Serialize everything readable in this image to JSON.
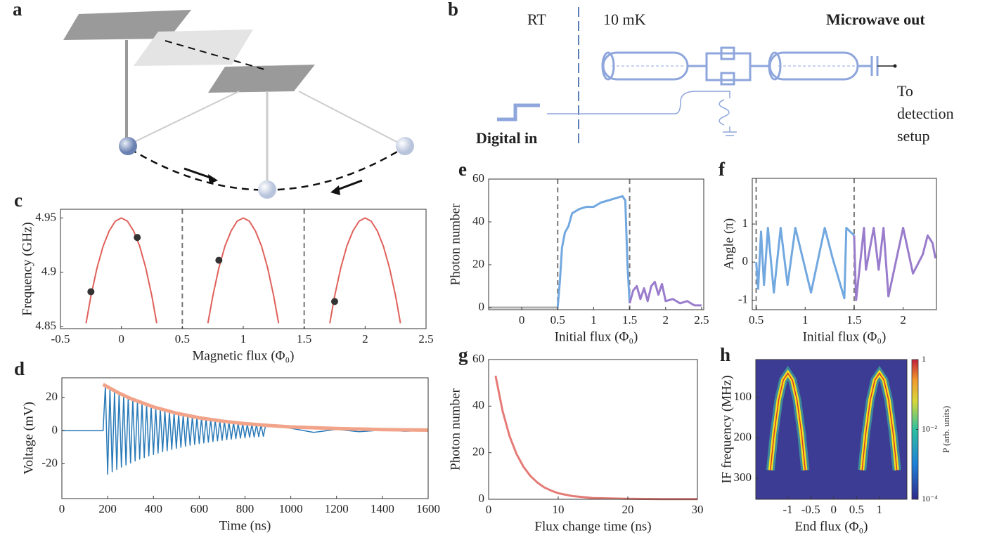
{
  "diagrams": {
    "a": {
      "label": "a"
    },
    "b": {
      "label": "b",
      "rt": "RT",
      "temp": "10 mK",
      "out": "Microwave out",
      "detect": [
        "To",
        "detection",
        "setup"
      ],
      "digital": "Digital in"
    }
  },
  "chart_data": [
    {
      "type": "line",
      "panel_label": "c",
      "xlabel": "Magnetic flux (Φ₀)",
      "ylabel": "Frequency (GHz)",
      "xlim": [
        -0.5,
        2.5
      ],
      "xticks": [
        -0.5,
        0,
        0.5,
        1,
        1.5,
        2,
        2.5
      ],
      "ylim": [
        4.848,
        4.958
      ],
      "yticks": [
        4.85,
        4.9,
        4.95
      ],
      "vlines": [
        0.5,
        1.5
      ],
      "series": [
        {
          "color": "#e0605a",
          "x": [
            -0.29,
            -0.25,
            -0.2,
            -0.15,
            -0.1,
            -0.05,
            0,
            0.05,
            0.1,
            0.15,
            0.2,
            0.25,
            0.29
          ],
          "values": [
            4.853,
            4.878,
            4.904,
            4.924,
            4.938,
            4.947,
            4.95,
            4.947,
            4.938,
            4.924,
            4.904,
            4.878,
            4.853
          ]
        },
        {
          "color": "#e0605a",
          "x": [
            0.71,
            0.75,
            0.8,
            0.85,
            0.9,
            0.95,
            1,
            1.05,
            1.1,
            1.15,
            1.2,
            1.25,
            1.29
          ],
          "values": [
            4.853,
            4.878,
            4.904,
            4.924,
            4.938,
            4.947,
            4.95,
            4.947,
            4.938,
            4.924,
            4.904,
            4.878,
            4.853
          ]
        },
        {
          "color": "#e0605a",
          "x": [
            1.71,
            1.75,
            1.8,
            1.85,
            1.9,
            1.95,
            2,
            2.05,
            2.1,
            2.15,
            2.2,
            2.25,
            2.29
          ],
          "values": [
            4.853,
            4.878,
            4.904,
            4.924,
            4.938,
            4.947,
            4.95,
            4.947,
            4.938,
            4.924,
            4.904,
            4.878,
            4.853
          ]
        }
      ],
      "points": {
        "color": "#333333",
        "x": [
          0.13,
          0.8,
          -0.25,
          1.75
        ],
        "values": [
          4.932,
          4.911,
          4.882,
          4.873
        ]
      }
    },
    {
      "type": "line",
      "panel_label": "d",
      "xlabel": "Time (ns)",
      "ylabel": "Voltage (mV)",
      "xlim": [
        0,
        1600
      ],
      "xticks": [
        0,
        200,
        400,
        600,
        800,
        1000,
        1200,
        1400,
        1600
      ],
      "ylim": [
        -41,
        32
      ],
      "yticks": [
        -20,
        0,
        20
      ],
      "series": [
        {
          "color": "#2a7ab8",
          "width": 1.5,
          "x": [
            0,
            100,
            180,
            190,
            200,
            210,
            220,
            230,
            240,
            250,
            260,
            270,
            280,
            290,
            300,
            310,
            320,
            330,
            340,
            350,
            360,
            370,
            380,
            390,
            400,
            410,
            420,
            430,
            440,
            450,
            460,
            470,
            480,
            490,
            500,
            510,
            520,
            530,
            540,
            550,
            560,
            570,
            580,
            590,
            600,
            610,
            620,
            630,
            640,
            650,
            660,
            670,
            680,
            690,
            700,
            710,
            720,
            730,
            740,
            750,
            760,
            770,
            780,
            790,
            800,
            810,
            820,
            830,
            840,
            850,
            860,
            870,
            880,
            890,
            1000,
            1100,
            1200,
            1300,
            1400,
            1500,
            1600
          ],
          "values": [
            0,
            0,
            0,
            27.2,
            -26.3,
            25.6,
            -24.8,
            24.1,
            -23.4,
            22.7,
            -22,
            21.3,
            -20.7,
            20.1,
            -19.5,
            18.9,
            -18.3,
            17.8,
            -17.2,
            16.7,
            -16.2,
            15.8,
            -15.3,
            14.8,
            -14.4,
            13.9,
            -13.5,
            13.1,
            -12.7,
            12.4,
            -12,
            11.6,
            -11.3,
            10.9,
            -10.6,
            10.3,
            -10,
            9.7,
            -9.4,
            9.1,
            -8.8,
            8.6,
            -8.3,
            8.1,
            -7.8,
            7.6,
            -7.4,
            7.2,
            -6.9,
            6.7,
            -6.5,
            6.3,
            -6.1,
            6,
            -5.8,
            5.6,
            -5.4,
            5.3,
            -5.1,
            5,
            -4.8,
            4.7,
            -4.5,
            4.4,
            -4.3,
            4.1,
            -4,
            3.9,
            -3.8,
            3.7,
            -3.6,
            3.5,
            -3.4,
            3.3,
            1.5,
            -1,
            0.8,
            -0.6,
            0.4,
            -0.3,
            0.2
          ]
        },
        {
          "color": "#f2a48a",
          "width": 5,
          "x": [
            180,
            250,
            300,
            400,
            500,
            600,
            700,
            800,
            900,
            1000,
            1200,
            1400,
            1600
          ],
          "values": [
            28,
            22.7,
            19.5,
            14.4,
            10.6,
            7.8,
            5.8,
            4.3,
            3.2,
            2.3,
            1.3,
            0.7,
            0.4
          ]
        }
      ]
    },
    {
      "type": "line",
      "panel_label": "e",
      "xlabel": "Initial flux (Φ₀)",
      "ylabel": "Photon number",
      "xlim": [
        -0.46,
        2.53
      ],
      "xticks": [
        0,
        0.5,
        1,
        1.5,
        2,
        2.5
      ],
      "ylim": [
        -1,
        60
      ],
      "yticks": [
        0,
        20,
        40,
        60
      ],
      "vlines": [
        0.5,
        1.5
      ],
      "series": [
        {
          "color": "#b0b0b0",
          "width": 3,
          "x": [
            -0.46,
            0,
            0.5
          ],
          "values": [
            0,
            0,
            0
          ]
        },
        {
          "color": "#72a8e0",
          "width": 3,
          "x": [
            0.5,
            0.53,
            0.56,
            0.6,
            0.65,
            0.7,
            0.8,
            0.9,
            1,
            1.1,
            1.2,
            1.3,
            1.4,
            1.44,
            1.47,
            1.5
          ],
          "values": [
            0,
            12,
            28,
            35,
            38,
            44,
            46,
            47,
            47,
            49,
            50,
            51,
            52,
            50,
            20,
            2
          ]
        },
        {
          "color": "#9a7ccc",
          "width": 3,
          "x": [
            1.5,
            1.55,
            1.6,
            1.65,
            1.7,
            1.75,
            1.8,
            1.85,
            1.9,
            1.95,
            2,
            2.1,
            2.2,
            2.3,
            2.4,
            2.5
          ],
          "values": [
            2,
            8,
            10,
            4,
            9,
            3,
            10,
            12,
            6,
            11,
            3,
            4,
            2,
            3,
            1,
            1
          ]
        }
      ]
    },
    {
      "type": "line",
      "panel_label": "f",
      "xlabel": "Initial flux (Φ₀)",
      "ylabel": "Angle (π)",
      "xlim": [
        0.46,
        2.34
      ],
      "xticks": [
        0.5,
        1,
        1.5,
        2
      ],
      "ylim": [
        -1.25,
        2.2
      ],
      "yticks": [
        -1,
        0,
        1
      ],
      "vlines": [
        0.5,
        1.5
      ],
      "series": [
        {
          "color": "#72a8e0",
          "width": 3,
          "x": [
            0.5,
            0.52,
            0.55,
            0.58,
            0.62,
            0.68,
            0.75,
            0.82,
            0.9,
            1.06,
            1.2,
            1.28,
            1.4,
            1.42,
            1.5
          ],
          "values": [
            0,
            -0.7,
            0.8,
            -0.6,
            0.9,
            -0.8,
            0.9,
            -0.6,
            0.9,
            -0.8,
            0.9,
            0.1,
            -0.95,
            0.9,
            0.7
          ]
        },
        {
          "color": "#9a7ccc",
          "width": 3,
          "x": [
            1.5,
            1.52,
            1.6,
            1.62,
            1.7,
            1.75,
            1.8,
            1.85,
            2,
            2.1,
            2.2,
            2.25,
            2.3,
            2.33
          ],
          "values": [
            0.7,
            -1,
            0.9,
            -0.2,
            0.9,
            -0.2,
            0.9,
            -0.9,
            0.9,
            -0.3,
            0.2,
            0.7,
            0.5,
            0.1
          ]
        }
      ]
    },
    {
      "type": "line",
      "panel_label": "g",
      "xlabel": "Flux change time (ns)",
      "ylabel": "Photon number",
      "xlim": [
        0,
        30
      ],
      "xticks": [
        0,
        10,
        20,
        30
      ],
      "ylim": [
        0,
        60
      ],
      "yticks": [
        0,
        20,
        40,
        60
      ],
      "series": [
        {
          "color": "#e57b76",
          "width": 3,
          "x": [
            1,
            2,
            3,
            4,
            5,
            6,
            7,
            8,
            9,
            10,
            12,
            15,
            20,
            25,
            30
          ],
          "values": [
            53,
            38,
            27.2,
            19.5,
            14,
            10,
            7.2,
            5.1,
            3.7,
            2.6,
            1.4,
            0.5,
            0.2,
            0.1,
            0.1
          ]
        }
      ]
    },
    {
      "type": "heatmap",
      "panel_label": "h",
      "xlabel": "End flux (Φ₀)",
      "ylabel": "IF frequency (MHz)",
      "colorbar_label": "P (arb. units)",
      "xlim": [
        -1.7,
        1.6
      ],
      "xticks": [
        -1,
        -0.5,
        0,
        0.5,
        1
      ],
      "ylim": [
        352,
        6
      ],
      "yticks": [
        100,
        200,
        300
      ],
      "clim": [
        0.0001,
        1
      ],
      "cticks": [
        {
          "value": 1,
          "label": "1"
        },
        {
          "value": 0.01,
          "label": "10⁻²"
        },
        {
          "value": 0.0001,
          "label": "10⁻⁴"
        }
      ],
      "series": [
        {
          "color": "#f6e01e",
          "width": 3,
          "x": [
            -1.38,
            -1.3,
            -1.2,
            -1.1,
            -1,
            -0.9,
            -0.8,
            -0.7,
            -0.62
          ],
          "values": [
            280,
            190,
            106,
            57,
            40,
            57,
            106,
            190,
            280
          ]
        },
        {
          "color": "#f6e01e",
          "width": 3,
          "x": [
            0.62,
            0.7,
            0.8,
            0.9,
            1,
            1.1,
            1.2,
            1.3,
            1.38
          ],
          "values": [
            280,
            190,
            106,
            57,
            40,
            57,
            106,
            190,
            280
          ]
        }
      ]
    }
  ]
}
